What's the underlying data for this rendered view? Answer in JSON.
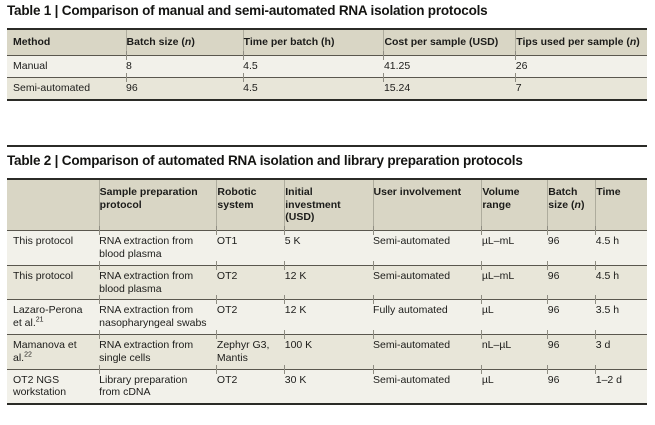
{
  "page": {
    "background": "#ffffff",
    "text_color": "#1c1c1a",
    "header_bg": "#d9d6c5",
    "row_light_bg": "#f2f1ea",
    "row_dark_bg": "#e8e6d9",
    "rule_color": "#5a574e",
    "heavy_border_color": "#2b2b27"
  },
  "table1": {
    "title": "Table 1 | Comparison of manual and semi-automated RNA isolation protocols",
    "columns": [
      "Method",
      "Batch size (<i>n</i>)",
      "Time per batch (h)",
      "Cost per sample (USD)",
      "Tips used per sample (<i>n</i>)"
    ],
    "rows": [
      [
        "Manual",
        "8",
        "4.5",
        "41.25",
        "26"
      ],
      [
        "Semi-automated",
        "96",
        "4.5",
        "15.24",
        "7"
      ]
    ]
  },
  "table2": {
    "title": "Table 2 | Comparison of automated RNA isolation and library preparation protocols",
    "columns": [
      "",
      "Sample preparation protocol",
      "Robotic system",
      "Initial investment (USD)",
      "User involvement",
      "Volume range",
      "Batch size (<i>n</i>)",
      "Time"
    ],
    "rows": [
      [
        "This protocol",
        "RNA extraction from blood plasma",
        "OT1",
        "5 K",
        "Semi-automated",
        "µL–mL",
        "96",
        "4.5 h"
      ],
      [
        "This protocol",
        "RNA extraction from blood plasma",
        "OT2",
        "12 K",
        "Semi-automated",
        "µL–mL",
        "96",
        "4.5 h"
      ],
      [
        "Lazaro-Perona et al.<sup>21</sup>",
        "RNA extraction from nasopharyngeal swabs",
        "OT2",
        "12 K",
        "Fully automated",
        "µL",
        "96",
        "3.5 h"
      ],
      [
        "Mamanova et al.<sup>22</sup>",
        "RNA extraction from single cells",
        "Zephyr G3, Mantis",
        "100 K",
        "Semi-automated",
        "nL–µL",
        "96",
        "3 d"
      ],
      [
        "OT2 NGS workstation",
        "Library preparation from cDNA",
        "OT2",
        "30 K",
        "Semi-automated",
        "µL",
        "96",
        "1–2 d"
      ]
    ]
  }
}
